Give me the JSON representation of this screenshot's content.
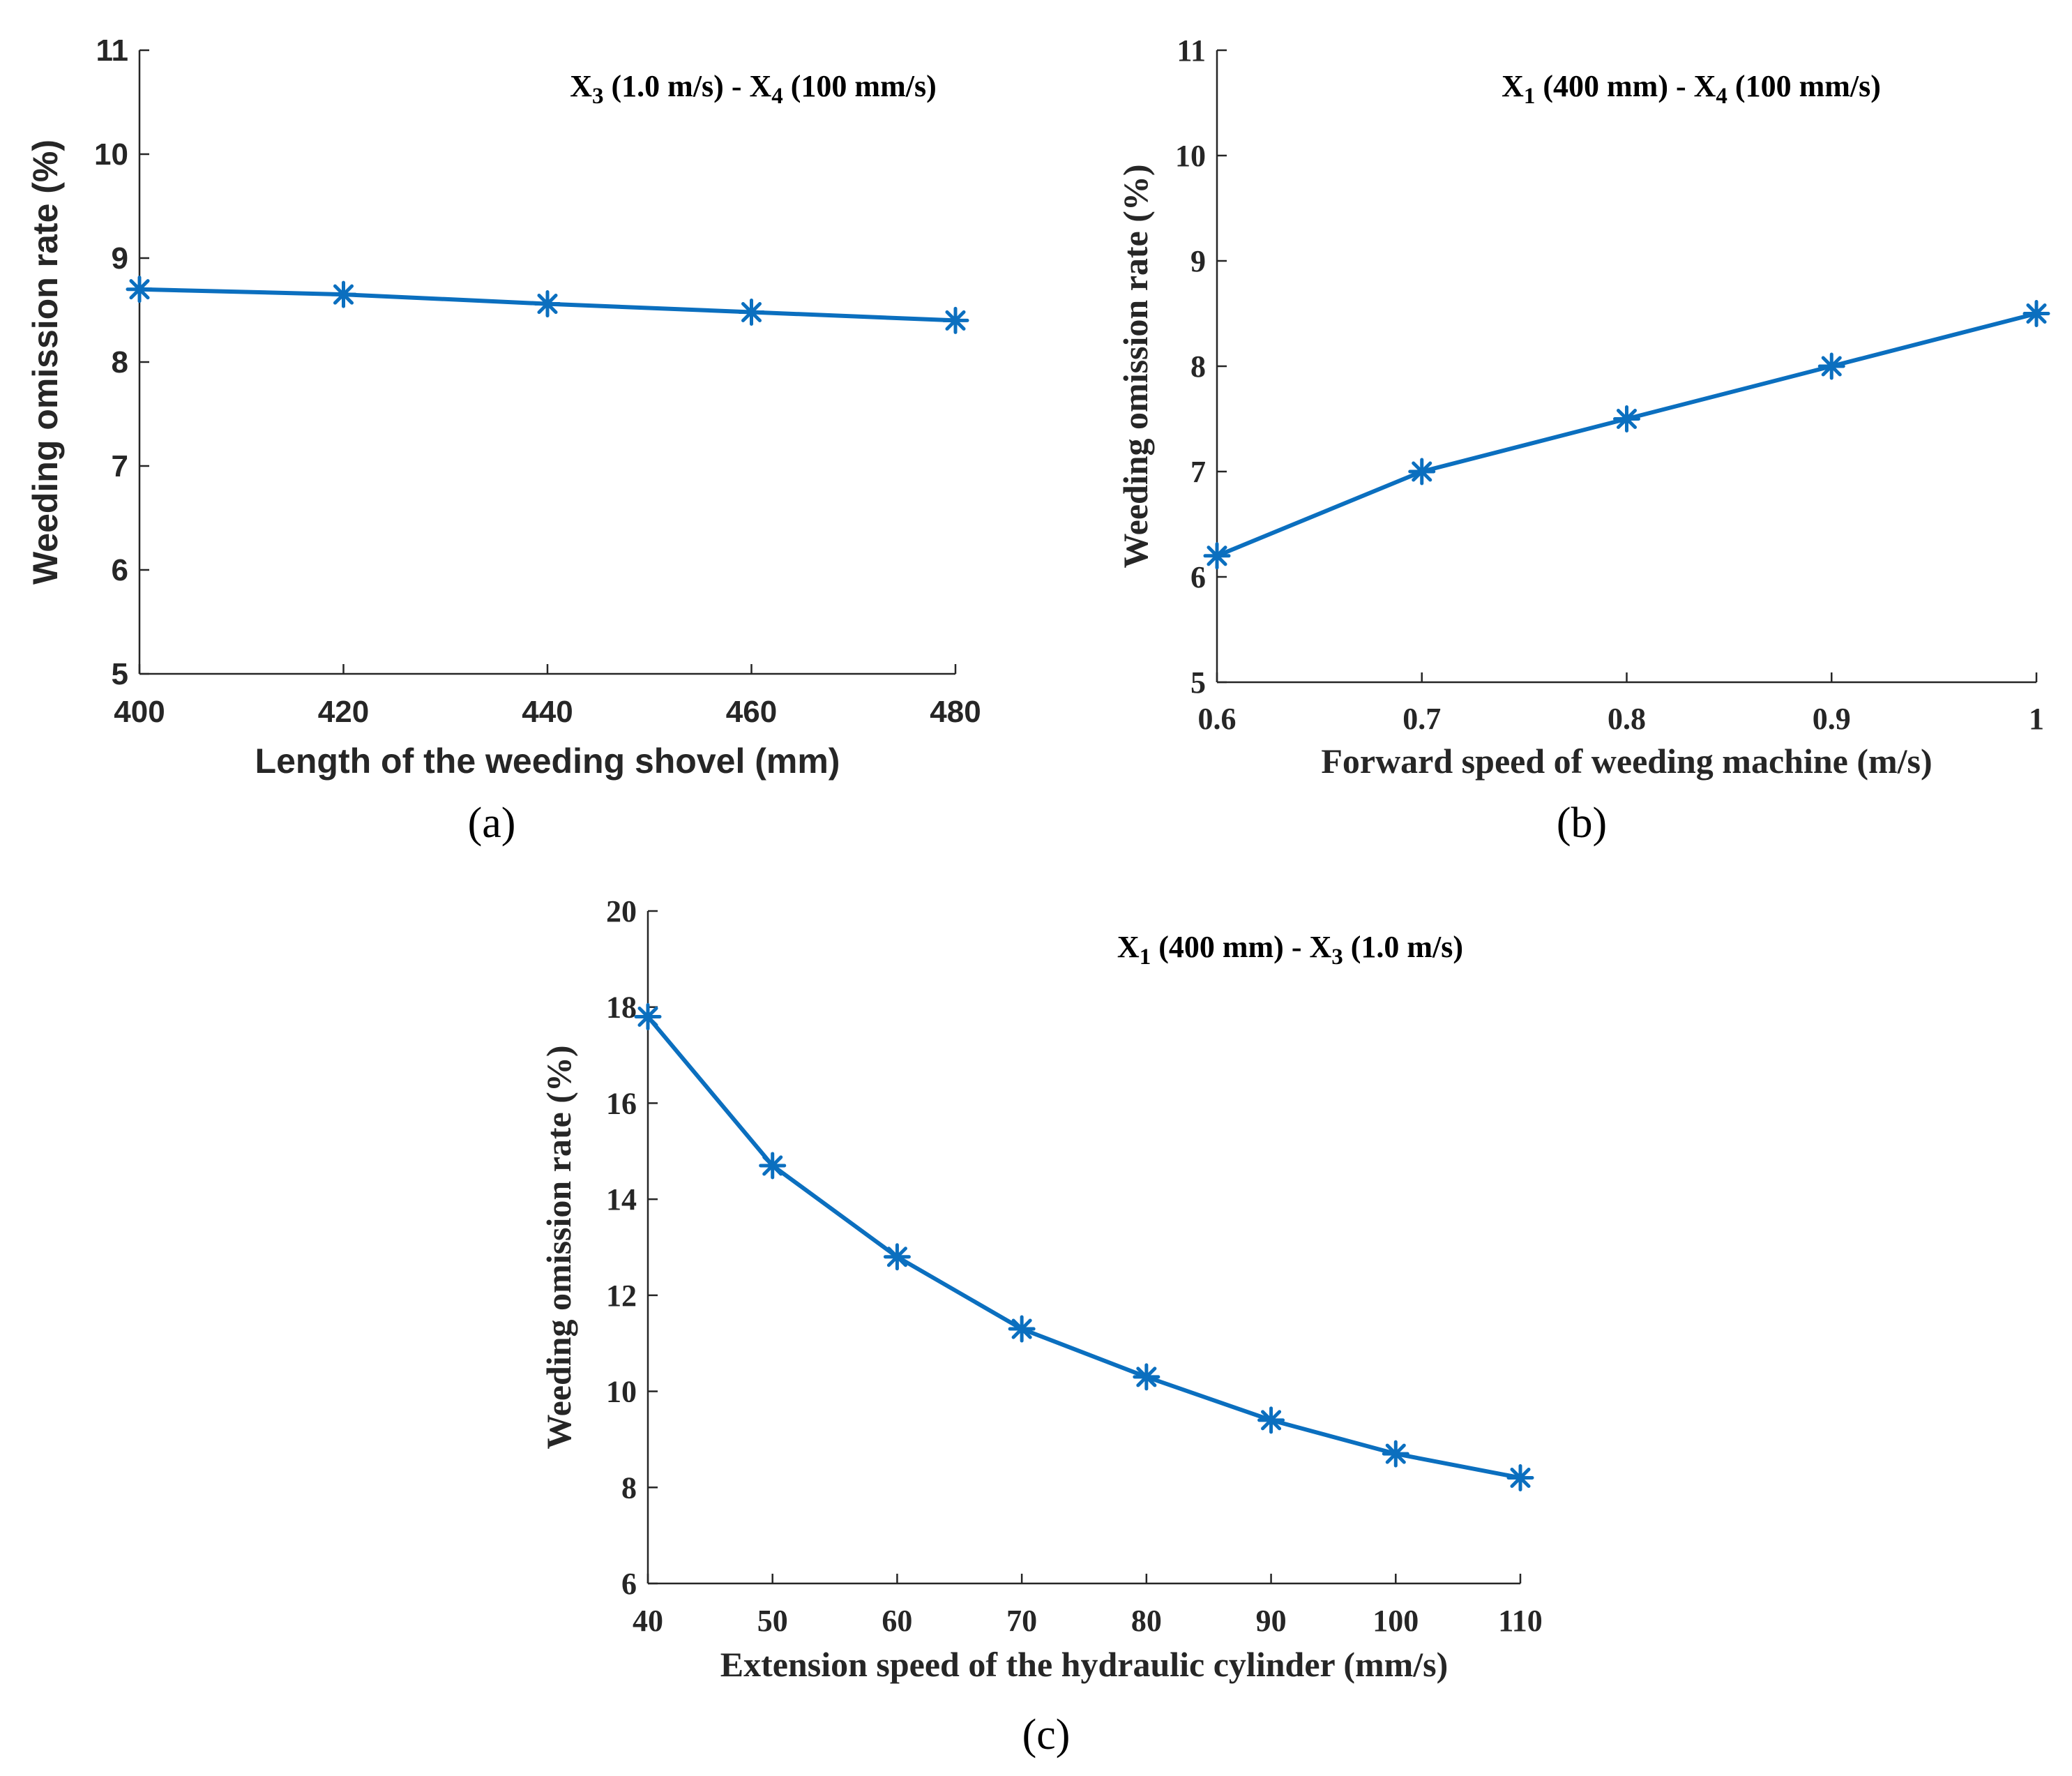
{
  "figure": {
    "captions": [
      "(a)",
      "(b)",
      "(c)"
    ]
  },
  "colors": {
    "line": "#0b6fbf",
    "axis": "#262626",
    "text": "#262626"
  },
  "chart_data": [
    {
      "id": "a",
      "type": "line",
      "title": "X3 (1.0 m/s) - X4 (100 mm/s)",
      "title_parts": [
        [
          "X",
          ""
        ],
        [
          "3",
          "sub"
        ],
        [
          " (1.0 m/s) - X",
          ""
        ],
        [
          "4",
          "sub"
        ],
        [
          " (100 mm/s)",
          ""
        ]
      ],
      "xlabel": "Length of the weeding shovel (mm)",
      "ylabel": "Weeding omission rate (%)",
      "x": [
        400,
        420,
        440,
        460,
        480
      ],
      "y": [
        8.7,
        8.65,
        8.56,
        8.48,
        8.4
      ],
      "xlim": [
        400,
        480
      ],
      "ylim": [
        5,
        11
      ],
      "xticks": [
        "400",
        "420",
        "440",
        "460",
        "480"
      ],
      "yticks": [
        "5",
        "6",
        "7",
        "8",
        "9",
        "10",
        "11"
      ],
      "marker": "asterisk",
      "grid": false,
      "legend": "none"
    },
    {
      "id": "b",
      "type": "line",
      "title": "X1 (400 mm) - X4 (100 mm/s)",
      "title_parts": [
        [
          "X",
          ""
        ],
        [
          "1",
          "sub"
        ],
        [
          " (400 mm) - X",
          ""
        ],
        [
          "4",
          "sub"
        ],
        [
          " (100 mm/s)",
          ""
        ]
      ],
      "xlabel": "Forward speed of weeding machine (m/s)",
      "ylabel": "Weeding omission rate (%)",
      "x": [
        0.6,
        0.7,
        0.8,
        0.9,
        1.0
      ],
      "y": [
        6.2,
        7.0,
        7.5,
        8.0,
        8.5
      ],
      "xlim": [
        0.6,
        1.0
      ],
      "ylim": [
        5,
        11
      ],
      "xticks": [
        "0.6",
        "0.7",
        "0.8",
        "0.9",
        "1"
      ],
      "yticks": [
        "5",
        "6",
        "7",
        "8",
        "9",
        "10",
        "11"
      ],
      "marker": "asterisk",
      "grid": false,
      "legend": "none"
    },
    {
      "id": "c",
      "type": "line",
      "title": "X1 (400 mm) - X3 (1.0 m/s)",
      "title_parts": [
        [
          "X",
          ""
        ],
        [
          "1",
          "sub"
        ],
        [
          " (400 mm) - X",
          ""
        ],
        [
          "3",
          "sub"
        ],
        [
          " (1.0 m/s)",
          ""
        ]
      ],
      "xlabel": "Extension speed of the hydraulic cylinder (mm/s)",
      "ylabel": "Weeding omission rate (%)",
      "x": [
        40,
        50,
        60,
        70,
        80,
        90,
        100,
        110
      ],
      "y": [
        17.8,
        14.7,
        12.8,
        11.3,
        10.3,
        9.4,
        8.7,
        8.2
      ],
      "xlim": [
        40,
        110
      ],
      "ylim": [
        6,
        20
      ],
      "xticks": [
        "40",
        "50",
        "60",
        "70",
        "80",
        "90",
        "100",
        "110"
      ],
      "yticks": [
        "6",
        "8",
        "10",
        "12",
        "14",
        "16",
        "18",
        "20"
      ],
      "marker": "asterisk",
      "grid": false,
      "legend": "none"
    }
  ]
}
